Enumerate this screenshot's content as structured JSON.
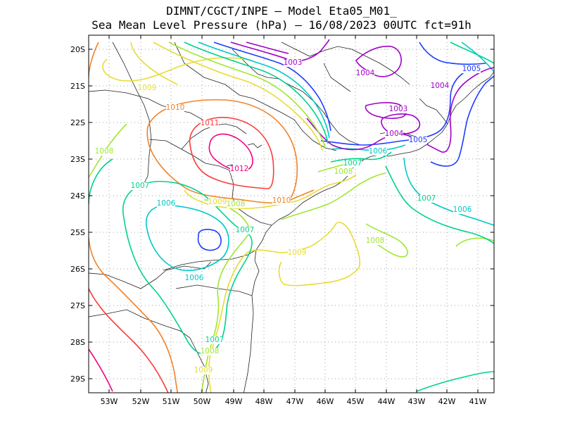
{
  "header": {
    "line1": "DIMNT/CGCT/INPE –  Model Eta05_M01_",
    "line2": "Sea Mean Level Pressure (hPa) – 16/08/2023 00UTC fct=91h"
  },
  "axes": {
    "lat_labels": [
      "20S",
      "21S",
      "22S",
      "23S",
      "24S",
      "25S",
      "26S",
      "27S",
      "28S",
      "29S"
    ],
    "lon_labels": [
      "53W",
      "52W",
      "51W",
      "50W",
      "49W",
      "48W",
      "47W",
      "46W",
      "45W",
      "44W",
      "43W",
      "42W",
      "41W"
    ]
  },
  "isobar_colors": {
    "1003": "#a000c8",
    "1004": "#a000c8",
    "1005": "#1e3cff",
    "1006": "#00c8c8",
    "1007": "#00d28c",
    "1008": "#a0e632",
    "1009": "#e6dc32",
    "1010": "#f08228",
    "1011": "#fa3c3c",
    "1012": "#f00082"
  },
  "contour_labels": [
    {
      "text": "1003",
      "key": "1003"
    },
    {
      "text": "1004",
      "key": "1004"
    },
    {
      "text": "1003",
      "key": "1003"
    },
    {
      "text": "1004",
      "key": "1004"
    },
    {
      "text": "1004",
      "key": "1004"
    },
    {
      "text": "1005",
      "key": "1005"
    },
    {
      "text": "1005",
      "key": "1005"
    },
    {
      "text": "1006",
      "key": "1006"
    },
    {
      "text": "1007",
      "key": "1007"
    },
    {
      "text": "1008",
      "key": "1008"
    },
    {
      "text": "1009",
      "key": "1009"
    },
    {
      "text": "1010",
      "key": "1010"
    },
    {
      "text": "1011",
      "key": "1011"
    },
    {
      "text": "1012",
      "key": "1012"
    },
    {
      "text": "1008",
      "key": "1008"
    },
    {
      "text": "1007",
      "key": "1007"
    },
    {
      "text": "1006",
      "key": "1006"
    },
    {
      "text": "1009",
      "key": "1009"
    },
    {
      "text": "1008",
      "key": "1008"
    },
    {
      "text": "1010",
      "key": "1010"
    },
    {
      "text": "1007",
      "key": "1007"
    },
    {
      "text": "1009",
      "key": "1009"
    },
    {
      "text": "1006",
      "key": "1006"
    },
    {
      "text": "1007",
      "key": "1007"
    },
    {
      "text": "1006",
      "key": "1006"
    },
    {
      "text": "1008",
      "key": "1008"
    },
    {
      "text": "1007",
      "key": "1007"
    },
    {
      "text": "1008",
      "key": "1008"
    },
    {
      "text": "1009",
      "key": "1009"
    }
  ]
}
